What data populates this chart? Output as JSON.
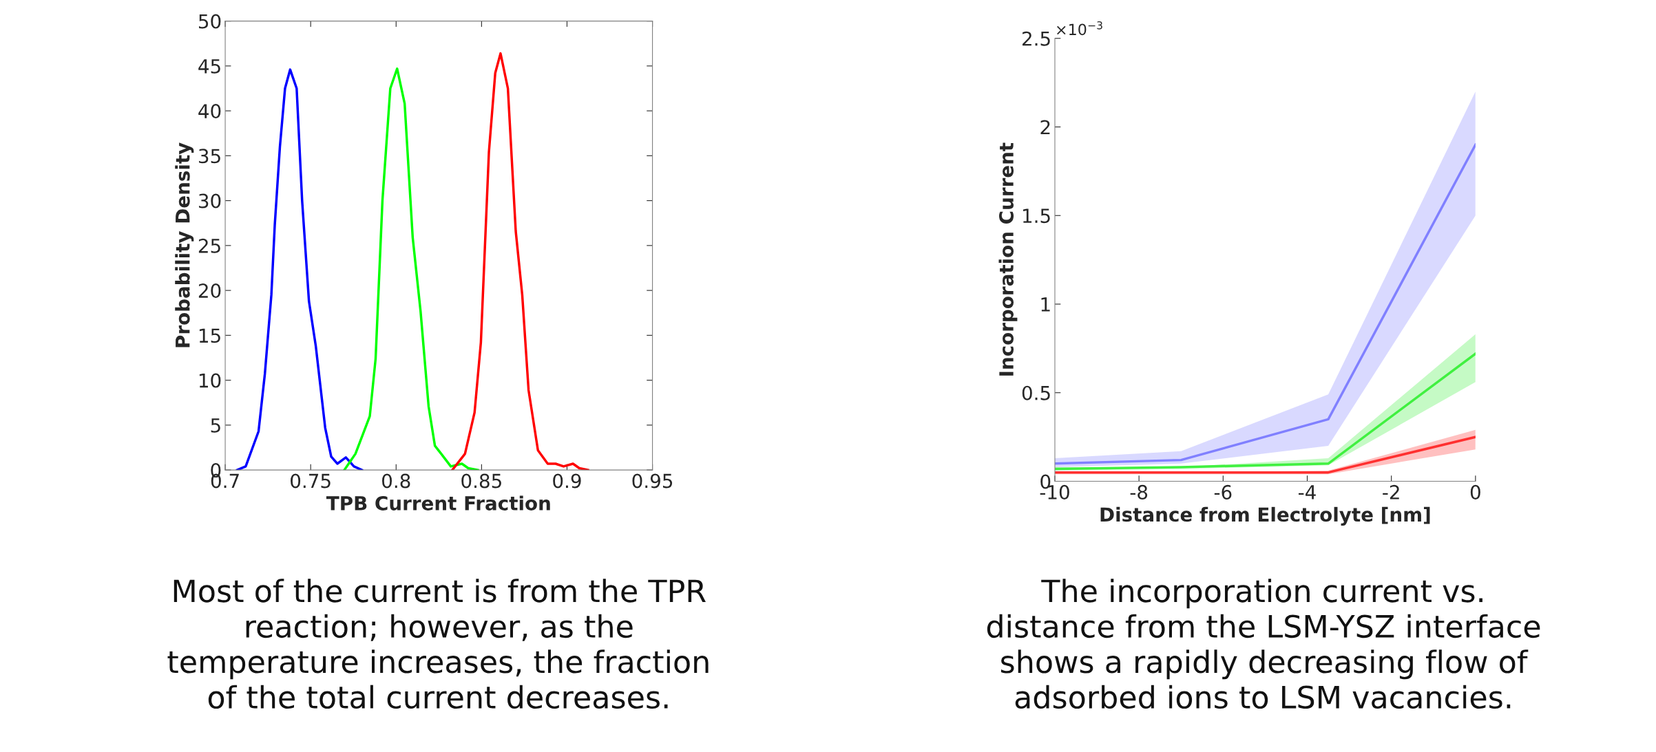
{
  "chart_data": [
    {
      "type": "line",
      "xlabel": "TPB Current Fraction",
      "ylabel": "Probability Density",
      "xlim": [
        0.7,
        0.95
      ],
      "xticks": [
        0.7,
        0.75,
        0.8,
        0.85,
        0.9,
        0.95
      ],
      "ylim": [
        0,
        50
      ],
      "yticks": [
        0,
        5,
        10,
        15,
        20,
        25,
        30,
        35,
        40,
        45,
        50
      ],
      "grid": false,
      "legend": false,
      "series": [
        {
          "color": "#0000ff",
          "x": [
            0.707,
            0.712,
            0.7195,
            0.7232,
            0.727,
            0.729,
            0.732,
            0.735,
            0.738,
            0.7418,
            0.745,
            0.749,
            0.753,
            0.7585,
            0.762,
            0.7656,
            0.7706,
            0.7753,
            0.78
          ],
          "values": [
            0,
            0.4,
            4.3,
            10.7,
            19.5,
            27.3,
            36,
            42.5,
            44.6,
            42.5,
            30,
            18.8,
            13.8,
            4.7,
            1.5,
            0.7,
            1.4,
            0.4,
            0
          ]
        },
        {
          "color": "#00ff00",
          "x": [
            0.7697,
            0.7762,
            0.7846,
            0.788,
            0.792,
            0.7966,
            0.8006,
            0.805,
            0.8097,
            0.8143,
            0.819,
            0.8227,
            0.8264,
            0.832,
            0.8385,
            0.8422,
            0.8478
          ],
          "values": [
            0,
            1.8,
            6,
            12.4,
            30,
            42.5,
            44.7,
            40.8,
            25.9,
            17.7,
            7.1,
            2.7,
            1.8,
            0.4,
            0.7,
            0.2,
            0
          ]
        },
        {
          "color": "#ff0000",
          "x": [
            0.8329,
            0.8403,
            0.8459,
            0.8496,
            0.8543,
            0.858,
            0.8611,
            0.8654,
            0.87,
            0.8738,
            0.8775,
            0.883,
            0.8887,
            0.8933,
            0.898,
            0.9035,
            0.9072,
            0.9123
          ],
          "values": [
            0,
            1.8,
            6.4,
            14.2,
            35.4,
            44.2,
            46.4,
            42.5,
            26.6,
            19.5,
            8.9,
            2.2,
            0.7,
            0.7,
            0.4,
            0.7,
            0.2,
            0
          ]
        }
      ],
      "annotations": [
        "Most of the current is from the TPR\nreaction; however, as the\ntemperature increases, the fraction\nof the total current decreases."
      ]
    },
    {
      "type": "line",
      "xlabel": "Distance from Electrolyte [nm]",
      "ylabel": "Incorporation Current",
      "xlim": [
        -10,
        0
      ],
      "xticks": [
        -10,
        -8,
        -6,
        -4,
        -2,
        0
      ],
      "ylim": [
        0,
        2.5
      ],
      "yticks": [
        0,
        0.5,
        1,
        1.5,
        2,
        2.5
      ],
      "grid": false,
      "legend": false,
      "series": [
        {
          "color": "#8080ff",
          "x": [
            -10,
            -7,
            -3.5,
            0
          ],
          "values": [
            0.1,
            0.12,
            0.35,
            1.9
          ],
          "lower": [
            0.08,
            0.1,
            0.2,
            1.5
          ],
          "upper": [
            0.13,
            0.17,
            0.49,
            2.2
          ]
        },
        {
          "color": "#40f040",
          "x": [
            -10,
            -7,
            -3.5,
            0
          ],
          "values": [
            0.07,
            0.08,
            0.1,
            0.72
          ],
          "lower": [
            0.06,
            0.07,
            0.09,
            0.56
          ],
          "upper": [
            0.08,
            0.08,
            0.13,
            0.83
          ]
        },
        {
          "color": "#ff3030",
          "x": [
            -10,
            -7,
            -3.5,
            0
          ],
          "values": [
            0.05,
            0.05,
            0.05,
            0.25
          ],
          "lower": [
            0.04,
            0.04,
            0.04,
            0.18
          ],
          "upper": [
            0.05,
            0.05,
            0.06,
            0.29
          ]
        }
      ],
      "annotations": [
        "×10$^{−3}$",
        "The incorporation current vs.\ndistance from the LSM-YSZ interface\nshows a rapidly decreasing flow of\nadsorbed ions to LSM vacancies."
      ]
    }
  ]
}
